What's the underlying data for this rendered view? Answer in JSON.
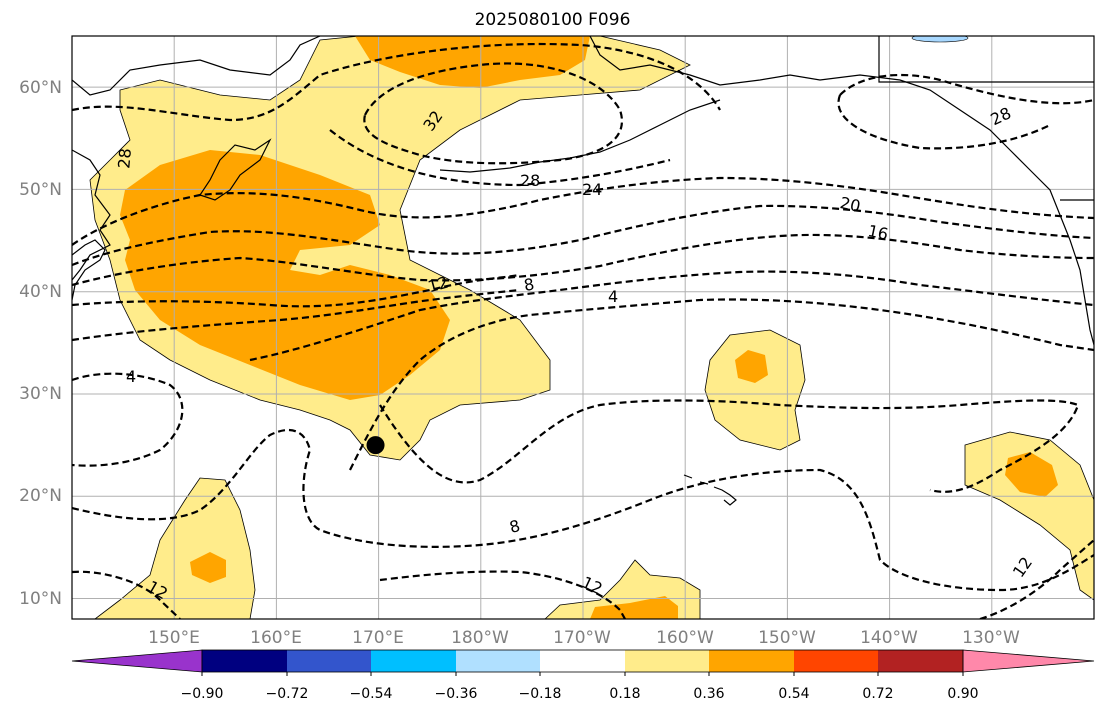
{
  "title": "2025080100 F096",
  "map": {
    "lon_labels": [
      "150°E",
      "160°E",
      "170°E",
      "180°W",
      "170°W",
      "160°W",
      "150°W",
      "140°W",
      "130°W"
    ],
    "lat_labels": [
      "60°N",
      "50°N",
      "40°N",
      "30°N",
      "20°N",
      "10°N"
    ],
    "extent": {
      "lon_min": 140,
      "lon_max": 240,
      "lat_min": 8,
      "lat_max": 65
    },
    "marker": {
      "lon": 169.7,
      "lat": 25.0
    },
    "contour_labels": [
      "32",
      "28",
      "28",
      "24",
      "20",
      "16",
      "28",
      "12",
      "8",
      "4",
      "4",
      "8",
      "12",
      "12",
      "12"
    ]
  },
  "colorbar": {
    "tick_labels": [
      "−0.90",
      "−0.72",
      "−0.54",
      "−0.36",
      "−0.18",
      "0.18",
      "0.36",
      "0.54",
      "0.72",
      "0.90"
    ],
    "colors": [
      "#9933cc",
      "#000080",
      "#3355cc",
      "#00bfff",
      "#b0e0ff",
      "#ffffff",
      "#ffec8b",
      "#ffa500",
      "#ff4500",
      "#b22222",
      "#ff88aa"
    ]
  }
}
